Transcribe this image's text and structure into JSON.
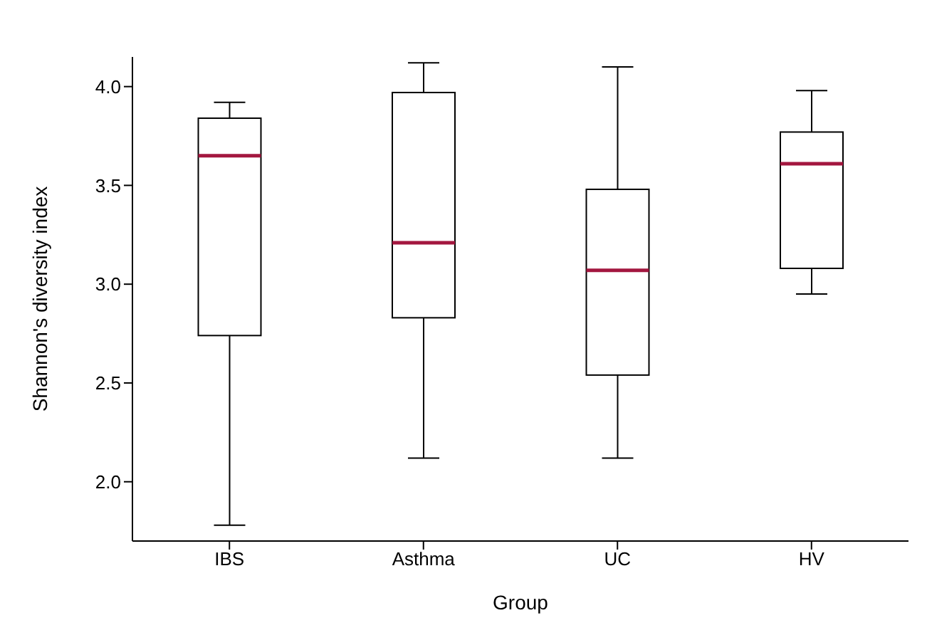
{
  "chart_data": {
    "type": "box",
    "xlabel": "Group",
    "ylabel": "Shannon's diversity index",
    "categories": [
      "IBS",
      "Asthma",
      "UC",
      "HV"
    ],
    "boxes": [
      {
        "low": 1.78,
        "q1": 2.74,
        "median": 3.65,
        "q3": 3.84,
        "high": 3.92
      },
      {
        "low": 2.12,
        "q1": 2.83,
        "median": 3.21,
        "q3": 3.97,
        "high": 4.12
      },
      {
        "low": 2.12,
        "q1": 2.54,
        "median": 3.07,
        "q3": 3.48,
        "high": 4.1
      },
      {
        "low": 2.95,
        "q1": 3.08,
        "median": 3.61,
        "q3": 3.77,
        "high": 3.98
      }
    ],
    "color": "#000000",
    "ylim": [
      1.7,
      4.15
    ],
    "yticks": [
      {
        "value": 2,
        "label": "2.0"
      },
      {
        "value": 2.5,
        "label": "2.5"
      },
      {
        "value": 3,
        "label": "3.0"
      },
      {
        "value": 3.5,
        "label": "3.5"
      },
      {
        "value": 4,
        "label": "4.0"
      }
    ],
    "grid": false,
    "legend": false
  }
}
